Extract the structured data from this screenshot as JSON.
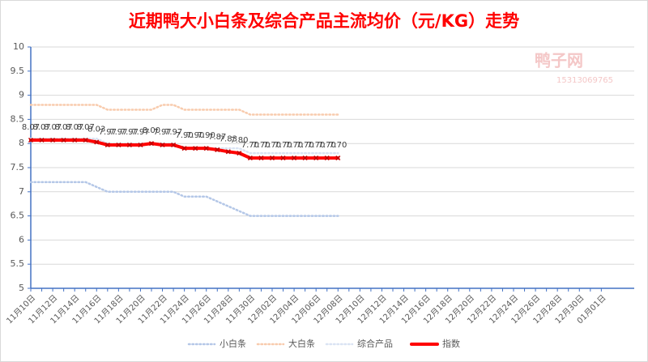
{
  "chart_data": {
    "type": "line",
    "title": "近期鸭大小白条及综合产品主流均价（元/KG）走势",
    "watermark": {
      "logo": "鸭子网",
      "phone": "15313069765"
    },
    "categories": [
      "11月10日",
      null,
      "11月12日",
      null,
      "11月14日",
      null,
      "11月16日",
      null,
      "11月18日",
      null,
      "11月20日",
      null,
      "11月22日",
      null,
      "11月24日",
      null,
      "11月26日",
      null,
      "11月28日",
      null,
      "11月30日",
      null,
      "12月02日",
      null,
      "12月04日",
      null,
      "12月06日",
      null,
      "12月08日",
      null,
      "12月10日",
      null,
      "12月12日",
      null,
      "12月14日",
      null,
      "12月16日",
      null,
      "12月18日",
      null,
      "12月20日",
      null,
      "12月22日",
      null,
      "12月24日",
      null,
      "12月26日",
      null,
      "12月28日",
      null,
      "12月30日",
      null,
      "01月01日"
    ],
    "series": [
      {
        "name": "小白条",
        "color": "#b4c7e7",
        "style": "dotted",
        "values": [
          7.2,
          7.2,
          7.2,
          7.2,
          7.2,
          7.2,
          7.1,
          7.0,
          7.0,
          7.0,
          7.0,
          7.0,
          7.0,
          7.0,
          6.9,
          6.9,
          6.9,
          6.8,
          6.7,
          6.6,
          6.5,
          6.5,
          6.5,
          6.5,
          6.5,
          6.5,
          6.5,
          6.5,
          6.5,
          null,
          null,
          null,
          null,
          null,
          null,
          null,
          null,
          null,
          null,
          null,
          null,
          null,
          null,
          null,
          null,
          null,
          null,
          null,
          null,
          null,
          null,
          null,
          null
        ]
      },
      {
        "name": "大白条",
        "color": "#f8cbad",
        "style": "dotted",
        "values": [
          8.8,
          8.8,
          8.8,
          8.8,
          8.8,
          8.8,
          8.8,
          8.7,
          8.7,
          8.7,
          8.7,
          8.7,
          8.8,
          8.8,
          8.7,
          8.7,
          8.7,
          8.7,
          8.7,
          8.7,
          8.6,
          8.6,
          8.6,
          8.6,
          8.6,
          8.6,
          8.6,
          8.6,
          8.6,
          null,
          null,
          null,
          null,
          null,
          null,
          null,
          null,
          null,
          null,
          null,
          null,
          null,
          null,
          null,
          null,
          null,
          null,
          null,
          null,
          null,
          null,
          null,
          null
        ]
      },
      {
        "name": "综合产品",
        "color": "#dae3f3",
        "style": "dotted",
        "values": [
          8.1,
          8.1,
          8.1,
          8.1,
          8.1,
          8.1,
          8.1,
          8.0,
          8.0,
          8.0,
          8.0,
          8.0,
          8.0,
          8.0,
          7.9,
          7.9,
          7.9,
          7.9,
          7.9,
          7.9,
          7.8,
          7.8,
          7.8,
          7.8,
          7.8,
          7.8,
          7.8,
          7.8,
          7.8,
          null,
          null,
          null,
          null,
          null,
          null,
          null,
          null,
          null,
          null,
          null,
          null,
          null,
          null,
          null,
          null,
          null,
          null,
          null,
          null,
          null,
          null,
          null,
          null
        ]
      },
      {
        "name": "指数",
        "color": "#ff0000",
        "style": "solid",
        "values": [
          8.07,
          8.07,
          8.07,
          8.07,
          8.07,
          8.07,
          8.03,
          7.97,
          7.97,
          7.97,
          7.97,
          8.0,
          7.97,
          7.97,
          7.9,
          7.9,
          7.9,
          7.87,
          7.83,
          7.8,
          7.7,
          7.7,
          7.7,
          7.7,
          7.7,
          7.7,
          7.7,
          7.7,
          7.7,
          null,
          null,
          null,
          null,
          null,
          null,
          null,
          null,
          null,
          null,
          null,
          null,
          null,
          null,
          null,
          null,
          null,
          null,
          null,
          null,
          null,
          null,
          null,
          null
        ],
        "value_labels": [
          "8.07",
          "8.07",
          "8.07",
          "8.07",
          "8.07",
          "8.07",
          "8.03",
          "7.97",
          "7.97",
          "7.97",
          "7.97",
          "8.00",
          "7.97",
          "7.97",
          "7.90",
          "7.90",
          "7.90",
          "7.87",
          "7.83",
          "7.80",
          "7.70",
          "7.70",
          "7.70",
          "7.70",
          "7.70",
          "7.70",
          "7.70",
          "7.70",
          "7.70",
          null,
          null,
          null,
          null,
          null,
          null,
          null,
          null,
          null,
          null,
          null,
          null,
          null,
          null,
          null,
          null,
          null,
          null,
          null,
          null,
          null,
          null,
          null,
          null
        ]
      }
    ],
    "ylim": [
      5,
      10
    ],
    "yticks": [
      5,
      5.5,
      6,
      6.5,
      7,
      7.5,
      8,
      8.5,
      9,
      9.5,
      10
    ],
    "grid": true
  }
}
